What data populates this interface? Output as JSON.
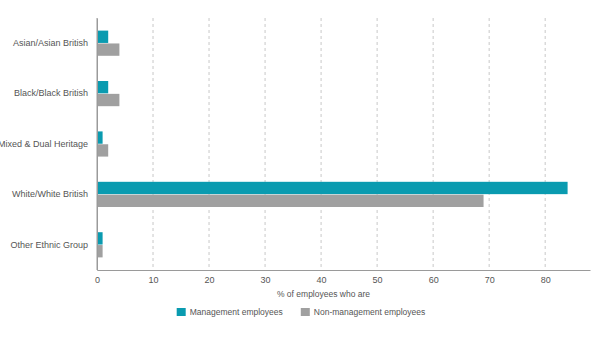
{
  "chart_data": {
    "type": "bar",
    "orientation": "horizontal",
    "grid": true,
    "legend": "bottom",
    "x_label": "% of employees who are",
    "categories": [
      "Asian/Asian British",
      "Black/Black British",
      "Mixed & Dual Heritage",
      "White/White British",
      "Other Ethnic Group"
    ],
    "series": [
      {
        "name": "Management employees",
        "color": "#0a9bb0",
        "values": [
          2,
          2,
          1,
          84,
          1
        ]
      },
      {
        "name": "Non-management employees",
        "color": "#a0a0a0",
        "values": [
          4,
          4,
          2,
          69,
          1
        ]
      }
    ],
    "xlim": [
      0,
      88
    ],
    "xticks": [
      0,
      10,
      20,
      30,
      40,
      50,
      60,
      70,
      80
    ]
  }
}
